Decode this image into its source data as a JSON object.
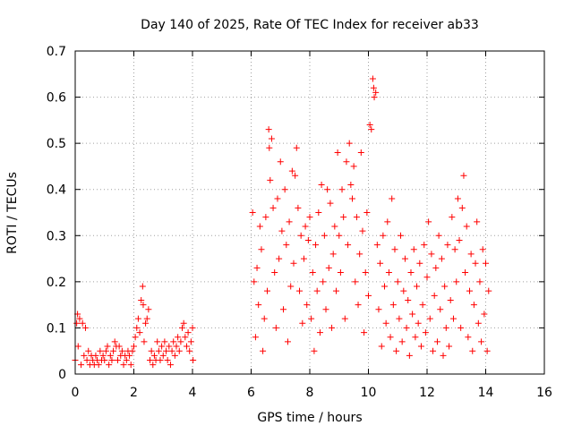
{
  "chart_data": {
    "type": "scatter",
    "title": "Day 140 of 2025, Rate Of TEC Index for receiver ab33",
    "xlabel": "GPS time / hours",
    "ylabel": "ROTI / TECUs",
    "xlim": [
      0,
      16
    ],
    "ylim": [
      0,
      0.7
    ],
    "xticks": [
      "0",
      "2",
      "4",
      "6",
      "8",
      "10",
      "12",
      "14",
      "16"
    ],
    "yticks": [
      "0",
      "0.1",
      "0.2",
      "0.3",
      "0.4",
      "0.5",
      "0.6",
      "0.7"
    ],
    "grid": true,
    "legend": "none",
    "marker": "+",
    "color": "#ff0000",
    "series": [
      {
        "points": [
          [
            0.0,
            0.03
          ],
          [
            0.05,
            0.11
          ],
          [
            0.08,
            0.13
          ],
          [
            0.1,
            0.06
          ],
          [
            0.15,
            0.12
          ],
          [
            0.2,
            0.02
          ],
          [
            0.25,
            0.11
          ],
          [
            0.3,
            0.04
          ],
          [
            0.35,
            0.1
          ],
          [
            0.4,
            0.03
          ],
          [
            0.45,
            0.05
          ],
          [
            0.5,
            0.02
          ],
          [
            0.55,
            0.04
          ],
          [
            0.6,
            0.03
          ],
          [
            0.65,
            0.02
          ],
          [
            0.7,
            0.04
          ],
          [
            0.75,
            0.03
          ],
          [
            0.8,
            0.02
          ],
          [
            0.85,
            0.05
          ],
          [
            0.9,
            0.03
          ],
          [
            0.95,
            0.04
          ],
          [
            1.0,
            0.03
          ],
          [
            1.05,
            0.05
          ],
          [
            1.1,
            0.06
          ],
          [
            1.15,
            0.02
          ],
          [
            1.2,
            0.04
          ],
          [
            1.25,
            0.03
          ],
          [
            1.3,
            0.05
          ],
          [
            1.35,
            0.07
          ],
          [
            1.4,
            0.06
          ],
          [
            1.45,
            0.03
          ],
          [
            1.5,
            0.06
          ],
          [
            1.55,
            0.04
          ],
          [
            1.6,
            0.05
          ],
          [
            1.65,
            0.02
          ],
          [
            1.7,
            0.04
          ],
          [
            1.75,
            0.03
          ],
          [
            1.8,
            0.05
          ],
          [
            1.85,
            0.04
          ],
          [
            1.9,
            0.02
          ],
          [
            1.95,
            0.05
          ],
          [
            2.0,
            0.06
          ],
          [
            2.05,
            0.08
          ],
          [
            2.1,
            0.1
          ],
          [
            2.15,
            0.12
          ],
          [
            2.2,
            0.09
          ],
          [
            2.25,
            0.16
          ],
          [
            2.3,
            0.19
          ],
          [
            2.32,
            0.15
          ],
          [
            2.35,
            0.07
          ],
          [
            2.4,
            0.11
          ],
          [
            2.45,
            0.12
          ],
          [
            2.5,
            0.14
          ],
          [
            2.55,
            0.03
          ],
          [
            2.6,
            0.05
          ],
          [
            2.65,
            0.02
          ],
          [
            2.7,
            0.04
          ],
          [
            2.75,
            0.03
          ],
          [
            2.8,
            0.07
          ],
          [
            2.85,
            0.05
          ],
          [
            2.9,
            0.03
          ],
          [
            2.95,
            0.06
          ],
          [
            3.0,
            0.04
          ],
          [
            3.05,
            0.07
          ],
          [
            3.1,
            0.05
          ],
          [
            3.15,
            0.03
          ],
          [
            3.2,
            0.06
          ],
          [
            3.25,
            0.02
          ],
          [
            3.3,
            0.05
          ],
          [
            3.35,
            0.07
          ],
          [
            3.4,
            0.04
          ],
          [
            3.45,
            0.06
          ],
          [
            3.5,
            0.08
          ],
          [
            3.55,
            0.05
          ],
          [
            3.6,
            0.07
          ],
          [
            3.65,
            0.1
          ],
          [
            3.7,
            0.11
          ],
          [
            3.75,
            0.08
          ],
          [
            3.8,
            0.06
          ],
          [
            3.85,
            0.09
          ],
          [
            3.9,
            0.05
          ],
          [
            3.95,
            0.07
          ],
          [
            4.0,
            0.1
          ],
          [
            4.02,
            0.03
          ],
          [
            6.05,
            0.35
          ],
          [
            6.1,
            0.2
          ],
          [
            6.15,
            0.08
          ],
          [
            6.2,
            0.23
          ],
          [
            6.25,
            0.15
          ],
          [
            6.3,
            0.32
          ],
          [
            6.35,
            0.27
          ],
          [
            6.4,
            0.05
          ],
          [
            6.45,
            0.12
          ],
          [
            6.5,
            0.34
          ],
          [
            6.55,
            0.18
          ],
          [
            6.6,
            0.53
          ],
          [
            6.62,
            0.49
          ],
          [
            6.65,
            0.42
          ],
          [
            6.7,
            0.51
          ],
          [
            6.75,
            0.36
          ],
          [
            6.8,
            0.22
          ],
          [
            6.85,
            0.1
          ],
          [
            6.9,
            0.38
          ],
          [
            6.95,
            0.25
          ],
          [
            7.0,
            0.46
          ],
          [
            7.05,
            0.31
          ],
          [
            7.1,
            0.14
          ],
          [
            7.15,
            0.4
          ],
          [
            7.2,
            0.28
          ],
          [
            7.25,
            0.07
          ],
          [
            7.3,
            0.33
          ],
          [
            7.35,
            0.19
          ],
          [
            7.4,
            0.44
          ],
          [
            7.45,
            0.24
          ],
          [
            7.5,
            0.43
          ],
          [
            7.55,
            0.49
          ],
          [
            7.6,
            0.36
          ],
          [
            7.65,
            0.18
          ],
          [
            7.7,
            0.3
          ],
          [
            7.75,
            0.11
          ],
          [
            7.8,
            0.25
          ],
          [
            7.85,
            0.32
          ],
          [
            7.9,
            0.15
          ],
          [
            7.95,
            0.29
          ],
          [
            8.0,
            0.34
          ],
          [
            8.05,
            0.12
          ],
          [
            8.1,
            0.22
          ],
          [
            8.15,
            0.05
          ],
          [
            8.2,
            0.28
          ],
          [
            8.25,
            0.18
          ],
          [
            8.3,
            0.35
          ],
          [
            8.35,
            0.09
          ],
          [
            8.4,
            0.41
          ],
          [
            8.45,
            0.2
          ],
          [
            8.5,
            0.3
          ],
          [
            8.55,
            0.14
          ],
          [
            8.6,
            0.4
          ],
          [
            8.65,
            0.23
          ],
          [
            8.7,
            0.37
          ],
          [
            8.75,
            0.1
          ],
          [
            8.8,
            0.26
          ],
          [
            8.85,
            0.32
          ],
          [
            8.9,
            0.18
          ],
          [
            8.95,
            0.48
          ],
          [
            9.0,
            0.3
          ],
          [
            9.05,
            0.22
          ],
          [
            9.1,
            0.4
          ],
          [
            9.15,
            0.34
          ],
          [
            9.2,
            0.12
          ],
          [
            9.25,
            0.46
          ],
          [
            9.3,
            0.28
          ],
          [
            9.35,
            0.5
          ],
          [
            9.4,
            0.41
          ],
          [
            9.45,
            0.38
          ],
          [
            9.5,
            0.45
          ],
          [
            9.55,
            0.2
          ],
          [
            9.6,
            0.34
          ],
          [
            9.65,
            0.15
          ],
          [
            9.7,
            0.26
          ],
          [
            9.75,
            0.48
          ],
          [
            9.8,
            0.31
          ],
          [
            9.85,
            0.09
          ],
          [
            9.9,
            0.22
          ],
          [
            9.95,
            0.35
          ],
          [
            10.0,
            0.17
          ],
          [
            10.05,
            0.54
          ],
          [
            10.1,
            0.53
          ],
          [
            10.15,
            0.64
          ],
          [
            10.18,
            0.62
          ],
          [
            10.2,
            0.6
          ],
          [
            10.25,
            0.61
          ],
          [
            10.3,
            0.28
          ],
          [
            10.35,
            0.14
          ],
          [
            10.4,
            0.24
          ],
          [
            10.45,
            0.06
          ],
          [
            10.5,
            0.3
          ],
          [
            10.55,
            0.19
          ],
          [
            10.6,
            0.11
          ],
          [
            10.65,
            0.33
          ],
          [
            10.7,
            0.22
          ],
          [
            10.75,
            0.08
          ],
          [
            10.8,
            0.38
          ],
          [
            10.85,
            0.15
          ],
          [
            10.9,
            0.27
          ],
          [
            10.95,
            0.05
          ],
          [
            11.0,
            0.2
          ],
          [
            11.05,
            0.12
          ],
          [
            11.1,
            0.3
          ],
          [
            11.15,
            0.07
          ],
          [
            11.2,
            0.18
          ],
          [
            11.25,
            0.25
          ],
          [
            11.3,
            0.1
          ],
          [
            11.35,
            0.16
          ],
          [
            11.4,
            0.04
          ],
          [
            11.45,
            0.22
          ],
          [
            11.5,
            0.13
          ],
          [
            11.55,
            0.27
          ],
          [
            11.6,
            0.08
          ],
          [
            11.65,
            0.19
          ],
          [
            11.7,
            0.11
          ],
          [
            11.75,
            0.24
          ],
          [
            11.8,
            0.06
          ],
          [
            11.85,
            0.15
          ],
          [
            11.9,
            0.28
          ],
          [
            11.95,
            0.09
          ],
          [
            12.0,
            0.21
          ],
          [
            12.05,
            0.33
          ],
          [
            12.1,
            0.12
          ],
          [
            12.15,
            0.26
          ],
          [
            12.2,
            0.05
          ],
          [
            12.25,
            0.17
          ],
          [
            12.3,
            0.23
          ],
          [
            12.35,
            0.07
          ],
          [
            12.4,
            0.3
          ],
          [
            12.45,
            0.14
          ],
          [
            12.5,
            0.25
          ],
          [
            12.55,
            0.04
          ],
          [
            12.6,
            0.19
          ],
          [
            12.65,
            0.1
          ],
          [
            12.7,
            0.28
          ],
          [
            12.75,
            0.06
          ],
          [
            12.8,
            0.16
          ],
          [
            12.85,
            0.34
          ],
          [
            12.9,
            0.12
          ],
          [
            12.95,
            0.27
          ],
          [
            13.0,
            0.2
          ],
          [
            13.05,
            0.38
          ],
          [
            13.1,
            0.29
          ],
          [
            13.15,
            0.1
          ],
          [
            13.2,
            0.36
          ],
          [
            13.25,
            0.43
          ],
          [
            13.3,
            0.22
          ],
          [
            13.35,
            0.32
          ],
          [
            13.4,
            0.08
          ],
          [
            13.45,
            0.18
          ],
          [
            13.5,
            0.26
          ],
          [
            13.55,
            0.05
          ],
          [
            13.6,
            0.15
          ],
          [
            13.65,
            0.24
          ],
          [
            13.7,
            0.33
          ],
          [
            13.75,
            0.11
          ],
          [
            13.8,
            0.2
          ],
          [
            13.85,
            0.07
          ],
          [
            13.9,
            0.27
          ],
          [
            13.95,
            0.13
          ],
          [
            14.0,
            0.24
          ],
          [
            14.05,
            0.05
          ],
          [
            14.1,
            0.18
          ]
        ]
      }
    ]
  }
}
